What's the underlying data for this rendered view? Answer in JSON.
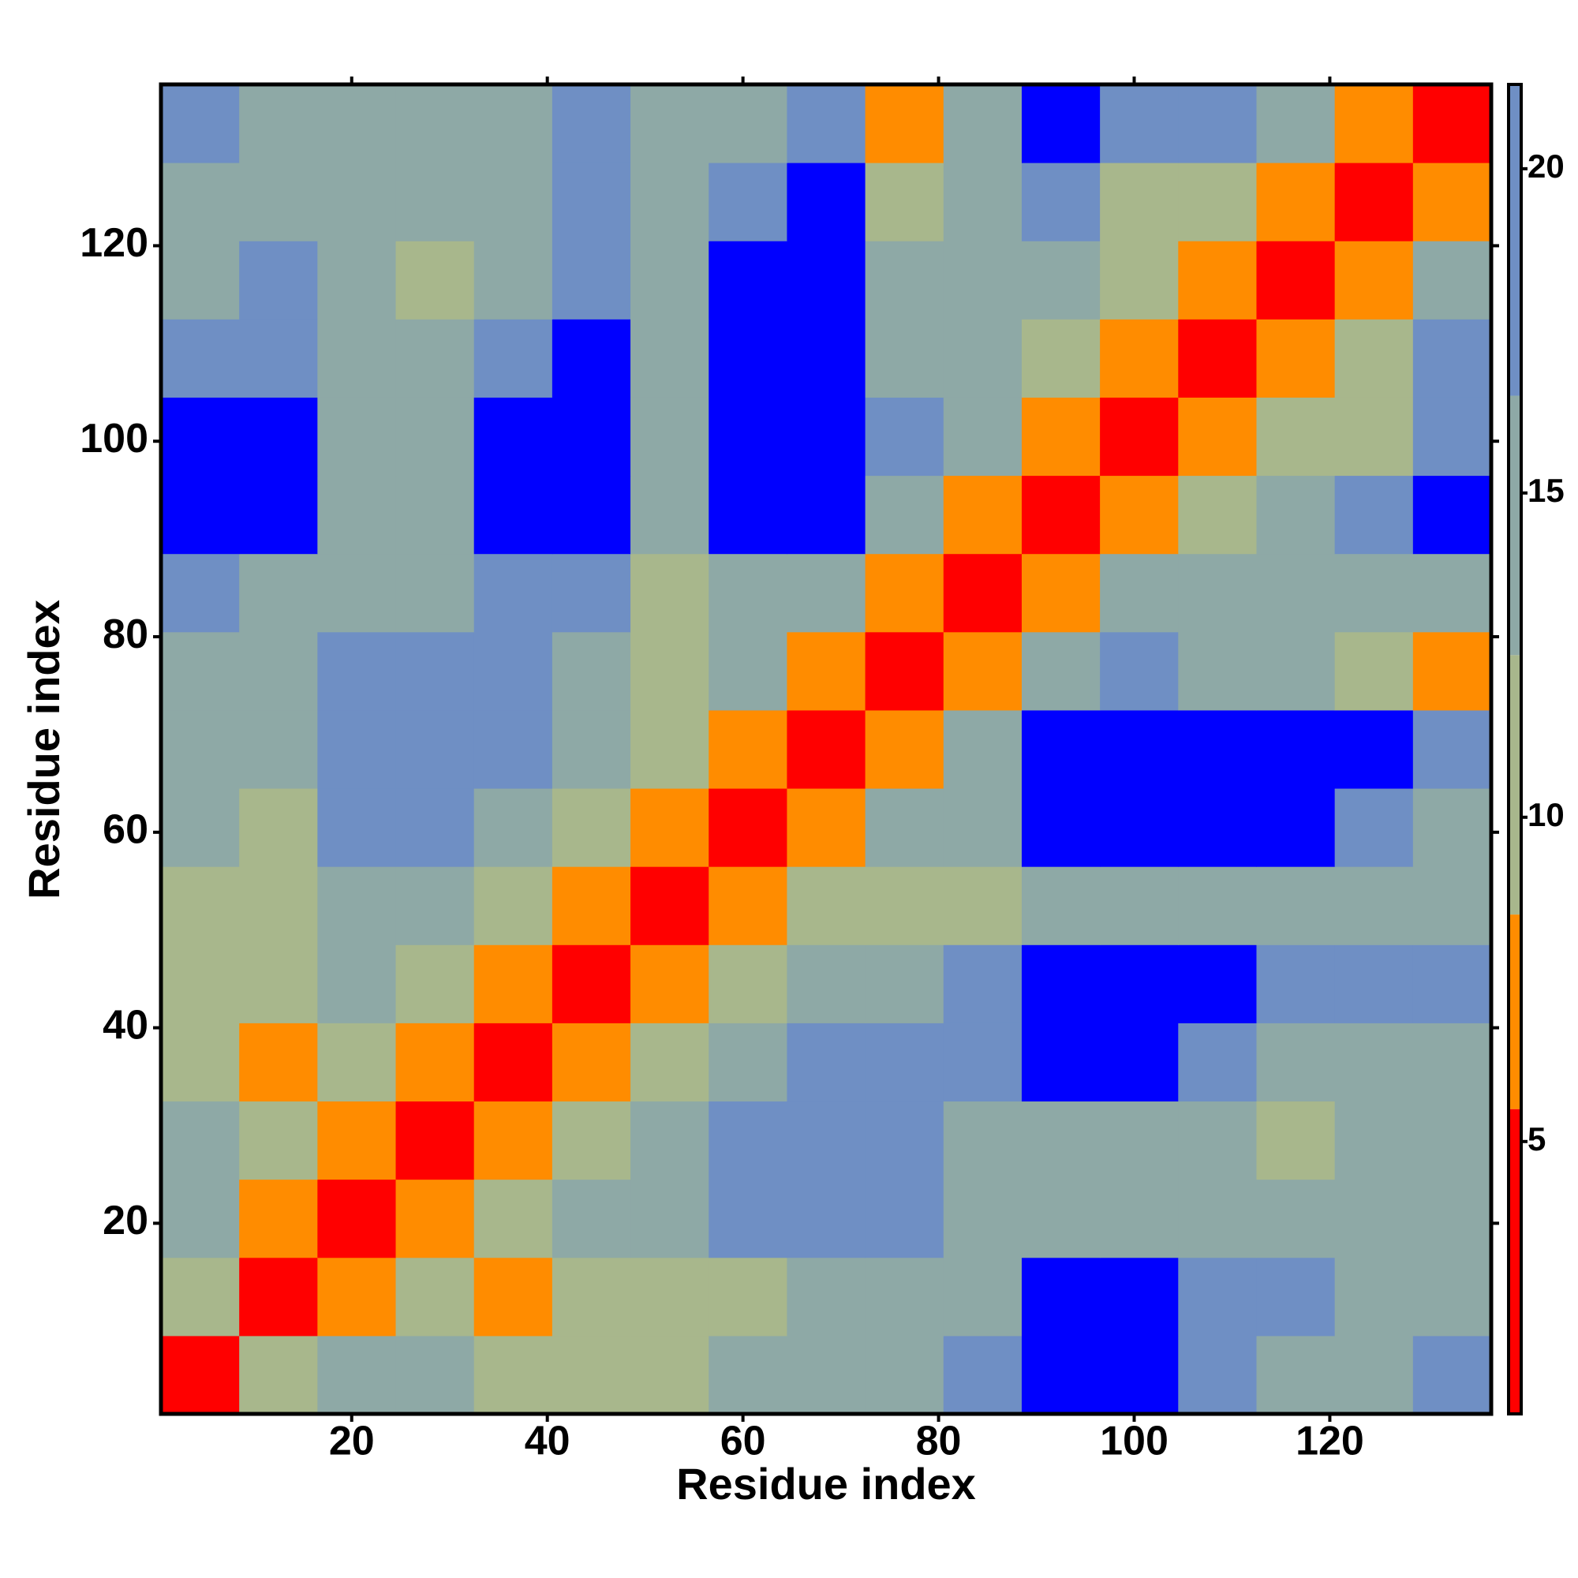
{
  "chart_data": {
    "type": "heatmap",
    "x_label": "Residue index",
    "y_label": "Residue index",
    "x_bins": [
      0.5,
      8.5,
      16.5,
      24.5,
      32.5,
      40.5,
      48.5,
      56.5,
      64.5,
      72.5,
      80.5,
      88.5,
      96.5,
      104.5,
      112.5,
      120.5,
      128.5,
      136.5
    ],
    "y_bins": [
      0.5,
      8.5,
      16.5,
      24.5,
      32.5,
      40.5,
      48.5,
      56.5,
      64.5,
      72.5,
      80.5,
      88.5,
      96.5,
      104.5,
      112.5,
      120.5,
      128.5,
      136.5
    ],
    "values": [
      [
        3.5,
        11,
        13,
        14,
        9,
        10,
        9,
        14,
        16,
        14,
        17,
        25,
        25,
        19,
        15,
        15,
        17
      ],
      [
        11,
        3.5,
        8,
        11,
        8,
        12,
        9,
        12,
        15,
        15,
        16,
        25,
        25,
        18,
        17,
        16,
        16
      ],
      [
        13,
        8,
        3.5,
        8,
        11,
        14,
        15,
        18,
        20,
        18,
        16,
        15,
        15,
        14,
        14,
        15,
        15
      ],
      [
        14,
        11,
        8,
        3.5,
        8,
        12,
        13,
        17,
        19,
        17,
        14,
        15,
        14,
        13,
        12,
        14,
        16
      ],
      [
        9,
        8,
        11,
        8,
        3.5,
        8,
        12,
        14,
        17,
        19,
        19,
        25,
        25,
        17,
        16,
        15,
        15
      ],
      [
        10,
        12,
        14,
        12,
        8,
        3.5,
        8,
        11,
        13,
        14,
        17,
        25,
        25,
        25,
        19,
        19,
        18
      ],
      [
        9,
        9,
        15,
        13,
        12,
        8,
        3.5,
        8,
        12,
        9,
        11,
        14,
        14,
        14,
        13,
        14,
        13
      ],
      [
        14,
        12,
        18,
        17,
        14,
        11,
        8,
        3.5,
        8,
        13,
        15,
        25,
        25,
        25,
        25,
        18,
        14
      ],
      [
        16,
        15,
        20,
        19,
        17,
        13,
        12,
        8,
        3.5,
        8,
        15,
        25,
        25,
        25,
        25,
        25,
        18
      ],
      [
        14,
        15,
        18,
        17,
        19,
        14,
        9,
        13,
        8,
        3.5,
        8,
        15,
        18,
        16,
        15,
        12,
        8
      ],
      [
        17,
        16,
        16,
        14,
        19,
        17,
        11,
        15,
        15,
        8,
        3.5,
        7,
        13,
        15,
        16,
        14,
        14
      ],
      [
        25,
        25,
        15,
        15,
        25,
        25,
        14,
        25,
        25,
        15,
        7,
        3.5,
        7,
        12,
        16,
        19,
        25
      ],
      [
        25,
        25,
        15,
        14,
        25,
        25,
        14,
        25,
        25,
        18,
        13,
        7,
        3.5,
        7,
        12,
        12,
        20
      ],
      [
        19,
        18,
        14,
        13,
        17,
        25,
        14,
        25,
        25,
        16,
        15,
        12,
        7,
        3.5,
        7,
        12,
        18
      ],
      [
        15,
        17,
        14,
        12,
        16,
        19,
        13,
        25,
        25,
        15,
        16,
        16,
        12,
        7,
        3.5,
        7,
        13
      ],
      [
        15,
        16,
        15,
        14,
        15,
        19,
        14,
        18,
        25,
        12,
        14,
        19,
        12,
        12,
        7,
        3.5,
        7
      ],
      [
        17,
        16,
        15,
        16,
        15,
        18,
        13,
        14,
        18,
        8,
        14,
        25,
        20,
        18,
        13,
        7,
        3.5
      ]
    ],
    "xlim": [
      0.5,
      136.5
    ],
    "ylim": [
      0.5,
      136.5
    ],
    "xticks": [
      20,
      40,
      60,
      80,
      100,
      120
    ],
    "yticks": [
      20,
      40,
      60,
      80,
      100,
      120
    ],
    "color_levels": [
      0.8,
      5.5,
      8.5,
      12.5,
      16.5,
      21.3
    ],
    "level_colors": [
      "#ff0000",
      "#ff8c00",
      "#a8b78c",
      "#8ea9a6",
      "#6f8fc4"
    ],
    "over_color": "#0000ff",
    "clim": [
      0.8,
      21.3
    ],
    "cticks": [
      5,
      10,
      15,
      20
    ]
  }
}
